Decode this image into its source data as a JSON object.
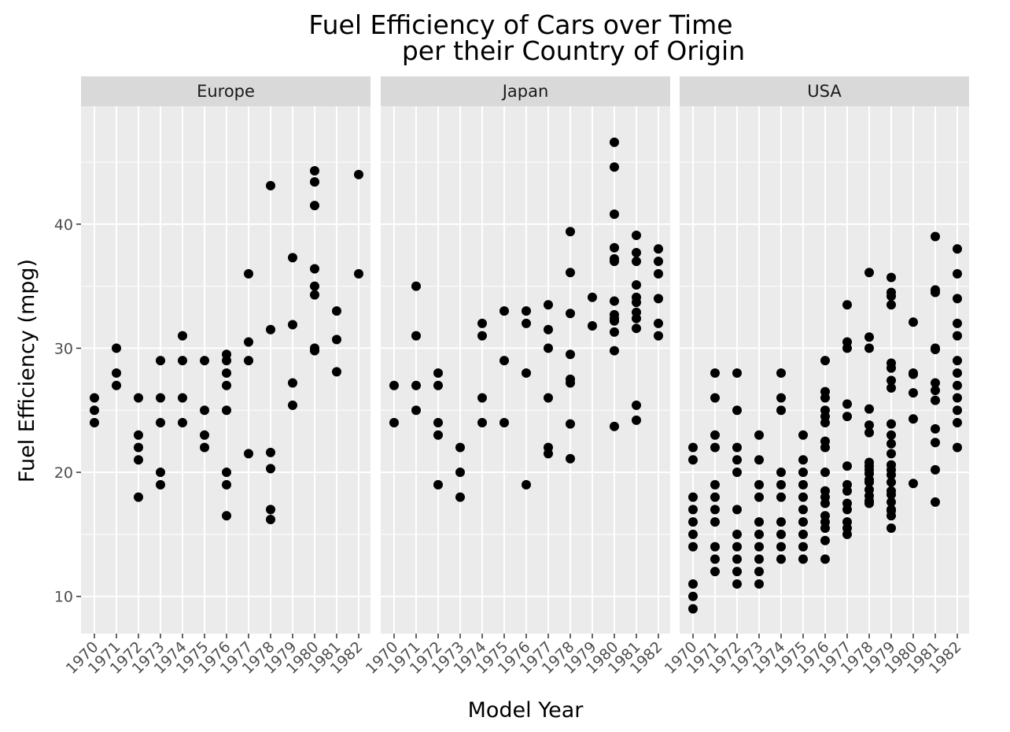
{
  "chart_data": {
    "type": "scatter",
    "title": [
      "Fuel Efficiency of Cars over Time",
      "per their Country of Origin"
    ],
    "xlabel": "Model Year",
    "ylabel": "Fuel Efficiency (mpg)",
    "x_categories": [
      "1970",
      "1971",
      "1972",
      "1973",
      "1974",
      "1975",
      "1976",
      "1977",
      "1978",
      "1979",
      "1980",
      "1981",
      "1982"
    ],
    "y_ticks": [
      10,
      20,
      30,
      40
    ],
    "ylim": [
      7,
      49.5
    ],
    "grid": true,
    "colors": {
      "panel_bg": "#ebebeb",
      "strip_bg": "#d9d9d9",
      "grid": "#ffffff",
      "point": "#000000"
    },
    "facets": [
      {
        "name": "Europe",
        "points": [
          [
            1970,
            26
          ],
          [
            1970,
            25
          ],
          [
            1970,
            24
          ],
          [
            1971,
            30
          ],
          [
            1971,
            28
          ],
          [
            1971,
            27
          ],
          [
            1972,
            26
          ],
          [
            1972,
            23
          ],
          [
            1972,
            22
          ],
          [
            1972,
            21
          ],
          [
            1972,
            18
          ],
          [
            1973,
            29
          ],
          [
            1973,
            26
          ],
          [
            1973,
            24
          ],
          [
            1973,
            20
          ],
          [
            1973,
            19
          ],
          [
            1974,
            31
          ],
          [
            1974,
            29
          ],
          [
            1974,
            26
          ],
          [
            1974,
            24
          ],
          [
            1975,
            29
          ],
          [
            1975,
            25
          ],
          [
            1975,
            23
          ],
          [
            1975,
            22
          ],
          [
            1976,
            29.5
          ],
          [
            1976,
            29
          ],
          [
            1976,
            28
          ],
          [
            1976,
            27
          ],
          [
            1976,
            25
          ],
          [
            1976,
            20
          ],
          [
            1976,
            19
          ],
          [
            1976,
            16.5
          ],
          [
            1977,
            36
          ],
          [
            1977,
            30.5
          ],
          [
            1977,
            29
          ],
          [
            1977,
            21.5
          ],
          [
            1978,
            43.1
          ],
          [
            1978,
            31.5
          ],
          [
            1978,
            21.6
          ],
          [
            1978,
            20.3
          ],
          [
            1978,
            17
          ],
          [
            1978,
            16.2
          ],
          [
            1979,
            37.3
          ],
          [
            1979,
            31.9
          ],
          [
            1979,
            27.2
          ],
          [
            1979,
            25.4
          ],
          [
            1980,
            44.3
          ],
          [
            1980,
            43.4
          ],
          [
            1980,
            41.5
          ],
          [
            1980,
            36.4
          ],
          [
            1980,
            35
          ],
          [
            1980,
            34.3
          ],
          [
            1980,
            30
          ],
          [
            1980,
            29.8
          ],
          [
            1981,
            33
          ],
          [
            1981,
            30.7
          ],
          [
            1981,
            28.1
          ],
          [
            1982,
            44
          ],
          [
            1982,
            36
          ]
        ]
      },
      {
        "name": "Japan",
        "points": [
          [
            1970,
            27
          ],
          [
            1970,
            24
          ],
          [
            1971,
            35
          ],
          [
            1971,
            31
          ],
          [
            1971,
            27
          ],
          [
            1971,
            25
          ],
          [
            1972,
            28
          ],
          [
            1972,
            27
          ],
          [
            1972,
            24
          ],
          [
            1972,
            23
          ],
          [
            1972,
            19
          ],
          [
            1973,
            22
          ],
          [
            1973,
            20
          ],
          [
            1973,
            18
          ],
          [
            1974,
            32
          ],
          [
            1974,
            31
          ],
          [
            1974,
            26
          ],
          [
            1974,
            24
          ],
          [
            1975,
            33
          ],
          [
            1975,
            29
          ],
          [
            1975,
            24
          ],
          [
            1976,
            33
          ],
          [
            1976,
            32
          ],
          [
            1976,
            28
          ],
          [
            1976,
            19
          ],
          [
            1977,
            33.5
          ],
          [
            1977,
            31.5
          ],
          [
            1977,
            30
          ],
          [
            1977,
            26
          ],
          [
            1977,
            22
          ],
          [
            1977,
            21.5
          ],
          [
            1978,
            39.4
          ],
          [
            1978,
            36.1
          ],
          [
            1978,
            32.8
          ],
          [
            1978,
            29.5
          ],
          [
            1978,
            27.5
          ],
          [
            1978,
            27.2
          ],
          [
            1978,
            23.9
          ],
          [
            1978,
            21.1
          ],
          [
            1979,
            34.1
          ],
          [
            1979,
            31.8
          ],
          [
            1980,
            46.6
          ],
          [
            1980,
            44.6
          ],
          [
            1980,
            40.8
          ],
          [
            1980,
            38.1
          ],
          [
            1980,
            37.2
          ],
          [
            1980,
            37
          ],
          [
            1980,
            33.8
          ],
          [
            1980,
            32.7
          ],
          [
            1980,
            32.4
          ],
          [
            1980,
            32.2
          ],
          [
            1980,
            31.3
          ],
          [
            1980,
            29.8
          ],
          [
            1980,
            23.7
          ],
          [
            1981,
            39.1
          ],
          [
            1981,
            37.7
          ],
          [
            1981,
            37
          ],
          [
            1981,
            35.1
          ],
          [
            1981,
            34.1
          ],
          [
            1981,
            33.7
          ],
          [
            1981,
            32.9
          ],
          [
            1981,
            32.4
          ],
          [
            1981,
            31.6
          ],
          [
            1981,
            25.4
          ],
          [
            1981,
            24.2
          ],
          [
            1982,
            38
          ],
          [
            1982,
            37
          ],
          [
            1982,
            36
          ],
          [
            1982,
            34
          ],
          [
            1982,
            32
          ],
          [
            1982,
            31
          ]
        ]
      },
      {
        "name": "USA",
        "points": [
          [
            1970,
            22
          ],
          [
            1970,
            21
          ],
          [
            1970,
            18
          ],
          [
            1970,
            17
          ],
          [
            1970,
            16
          ],
          [
            1970,
            15
          ],
          [
            1970,
            14
          ],
          [
            1970,
            11
          ],
          [
            1970,
            10
          ],
          [
            1970,
            9
          ],
          [
            1971,
            28
          ],
          [
            1971,
            26
          ],
          [
            1971,
            23
          ],
          [
            1971,
            22
          ],
          [
            1971,
            19
          ],
          [
            1971,
            18
          ],
          [
            1971,
            17
          ],
          [
            1971,
            16
          ],
          [
            1971,
            14
          ],
          [
            1971,
            13
          ],
          [
            1971,
            12
          ],
          [
            1972,
            28
          ],
          [
            1972,
            25
          ],
          [
            1972,
            22
          ],
          [
            1972,
            21
          ],
          [
            1972,
            20
          ],
          [
            1972,
            17
          ],
          [
            1972,
            15
          ],
          [
            1972,
            14
          ],
          [
            1972,
            13
          ],
          [
            1972,
            12
          ],
          [
            1972,
            11
          ],
          [
            1973,
            23
          ],
          [
            1973,
            21
          ],
          [
            1973,
            19
          ],
          [
            1973,
            18
          ],
          [
            1973,
            16
          ],
          [
            1973,
            15
          ],
          [
            1973,
            14
          ],
          [
            1973,
            13
          ],
          [
            1973,
            12
          ],
          [
            1973,
            11
          ],
          [
            1974,
            28
          ],
          [
            1974,
            26
          ],
          [
            1974,
            25
          ],
          [
            1974,
            20
          ],
          [
            1974,
            19
          ],
          [
            1974,
            18
          ],
          [
            1974,
            16
          ],
          [
            1974,
            15
          ],
          [
            1974,
            14
          ],
          [
            1974,
            13
          ],
          [
            1975,
            23
          ],
          [
            1975,
            21
          ],
          [
            1975,
            20
          ],
          [
            1975,
            19
          ],
          [
            1975,
            18
          ],
          [
            1975,
            17
          ],
          [
            1975,
            16
          ],
          [
            1975,
            15
          ],
          [
            1975,
            14
          ],
          [
            1975,
            13
          ],
          [
            1976,
            29
          ],
          [
            1976,
            26.5
          ],
          [
            1976,
            26
          ],
          [
            1976,
            25
          ],
          [
            1976,
            24.5
          ],
          [
            1976,
            24
          ],
          [
            1976,
            22.5
          ],
          [
            1976,
            22
          ],
          [
            1976,
            20
          ],
          [
            1976,
            18.5
          ],
          [
            1976,
            18
          ],
          [
            1976,
            17.5
          ],
          [
            1976,
            16.5
          ],
          [
            1976,
            16
          ],
          [
            1976,
            15.5
          ],
          [
            1976,
            14.5
          ],
          [
            1976,
            13
          ],
          [
            1977,
            33.5
          ],
          [
            1977,
            30.5
          ],
          [
            1977,
            30
          ],
          [
            1977,
            25.5
          ],
          [
            1977,
            24.5
          ],
          [
            1977,
            20.5
          ],
          [
            1977,
            19
          ],
          [
            1977,
            18.5
          ],
          [
            1977,
            17.5
          ],
          [
            1977,
            17
          ],
          [
            1977,
            16
          ],
          [
            1977,
            15.5
          ],
          [
            1977,
            15
          ],
          [
            1978,
            36.1
          ],
          [
            1978,
            30.9
          ],
          [
            1978,
            30
          ],
          [
            1978,
            25.1
          ],
          [
            1978,
            23.8
          ],
          [
            1978,
            23.2
          ],
          [
            1978,
            20.8
          ],
          [
            1978,
            20.5
          ],
          [
            1978,
            20.2
          ],
          [
            1978,
            19.9
          ],
          [
            1978,
            19.4
          ],
          [
            1978,
            19.2
          ],
          [
            1978,
            18.6
          ],
          [
            1978,
            18.1
          ],
          [
            1978,
            17.7
          ],
          [
            1978,
            17.5
          ],
          [
            1979,
            35.7
          ],
          [
            1979,
            34.5
          ],
          [
            1979,
            34.2
          ],
          [
            1979,
            33.5
          ],
          [
            1979,
            28.8
          ],
          [
            1979,
            28.4
          ],
          [
            1979,
            27.4
          ],
          [
            1979,
            26.8
          ],
          [
            1979,
            23.9
          ],
          [
            1979,
            23
          ],
          [
            1979,
            22.3
          ],
          [
            1979,
            21.5
          ],
          [
            1979,
            20.6
          ],
          [
            1979,
            20.2
          ],
          [
            1979,
            19.8
          ],
          [
            1979,
            19.2
          ],
          [
            1979,
            18.5
          ],
          [
            1979,
            18.2
          ],
          [
            1979,
            17.6
          ],
          [
            1979,
            17
          ],
          [
            1979,
            16.9
          ],
          [
            1979,
            16.5
          ],
          [
            1979,
            15.5
          ],
          [
            1980,
            32.1
          ],
          [
            1980,
            28
          ],
          [
            1980,
            27.9
          ],
          [
            1980,
            26.4
          ],
          [
            1980,
            24.3
          ],
          [
            1980,
            19.1
          ],
          [
            1981,
            39
          ],
          [
            1981,
            34.7
          ],
          [
            1981,
            34.5
          ],
          [
            1981,
            30
          ],
          [
            1981,
            29.9
          ],
          [
            1981,
            27.2
          ],
          [
            1981,
            26.6
          ],
          [
            1981,
            25.8
          ],
          [
            1981,
            23.5
          ],
          [
            1981,
            22.4
          ],
          [
            1981,
            20.2
          ],
          [
            1981,
            17.6
          ],
          [
            1982,
            38
          ],
          [
            1982,
            36
          ],
          [
            1982,
            34
          ],
          [
            1982,
            32
          ],
          [
            1982,
            31
          ],
          [
            1982,
            29
          ],
          [
            1982,
            28
          ],
          [
            1982,
            27
          ],
          [
            1982,
            26
          ],
          [
            1982,
            25
          ],
          [
            1982,
            24
          ],
          [
            1982,
            22
          ]
        ]
      }
    ]
  }
}
